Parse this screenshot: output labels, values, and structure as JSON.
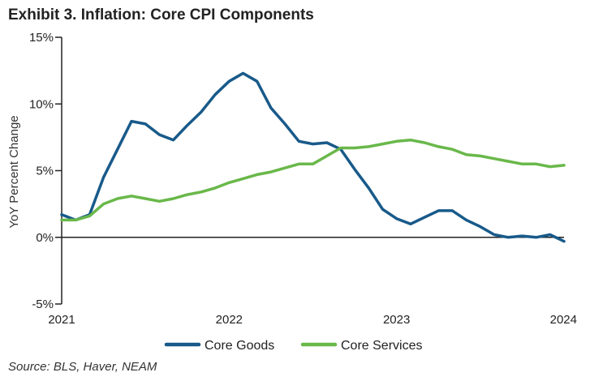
{
  "chart_data": {
    "type": "line",
    "title": "Exhibit 3. Inflation: Core CPI Components",
    "source": "Source: BLS, Haver, NEAM",
    "ylabel": "YoY Percent Change",
    "xlabel": "",
    "ylim": [
      -5,
      15
    ],
    "xlim": [
      2021,
      2024
    ],
    "grid": false,
    "legend_position": "bottom",
    "y_ticks": [
      15,
      10,
      5,
      0,
      -5
    ],
    "y_tick_labels": [
      "15%",
      "10%",
      "5%",
      "0%",
      "-5%"
    ],
    "x_ticks": [
      2021,
      2022,
      2023,
      2024
    ],
    "x_tick_labels": [
      "2021",
      "2022",
      "2023",
      "2024"
    ],
    "series": [
      {
        "name": "Core Goods",
        "color": "#185a8a",
        "values": [
          1.7,
          1.3,
          1.7,
          4.5,
          6.6,
          8.7,
          8.5,
          7.7,
          7.3,
          8.4,
          9.4,
          10.7,
          11.7,
          12.3,
          11.7,
          9.7,
          8.5,
          7.2,
          7.0,
          7.1,
          6.6,
          5.1,
          3.7,
          2.1,
          1.4,
          1.0,
          1.5,
          2.0,
          2.0,
          1.3,
          0.8,
          0.2,
          0.0,
          0.1,
          0.0,
          0.2,
          -0.3
        ]
      },
      {
        "name": "Core Services",
        "color": "#69b84a",
        "values": [
          1.3,
          1.3,
          1.6,
          2.5,
          2.9,
          3.1,
          2.9,
          2.7,
          2.9,
          3.2,
          3.4,
          3.7,
          4.1,
          4.4,
          4.7,
          4.9,
          5.2,
          5.5,
          5.5,
          6.1,
          6.7,
          6.7,
          6.8,
          7.0,
          7.2,
          7.3,
          7.1,
          6.8,
          6.6,
          6.2,
          6.1,
          5.9,
          5.7,
          5.5,
          5.5,
          5.3,
          5.4
        ]
      }
    ],
    "x_start": 2021.0,
    "x_step_months": 1
  }
}
